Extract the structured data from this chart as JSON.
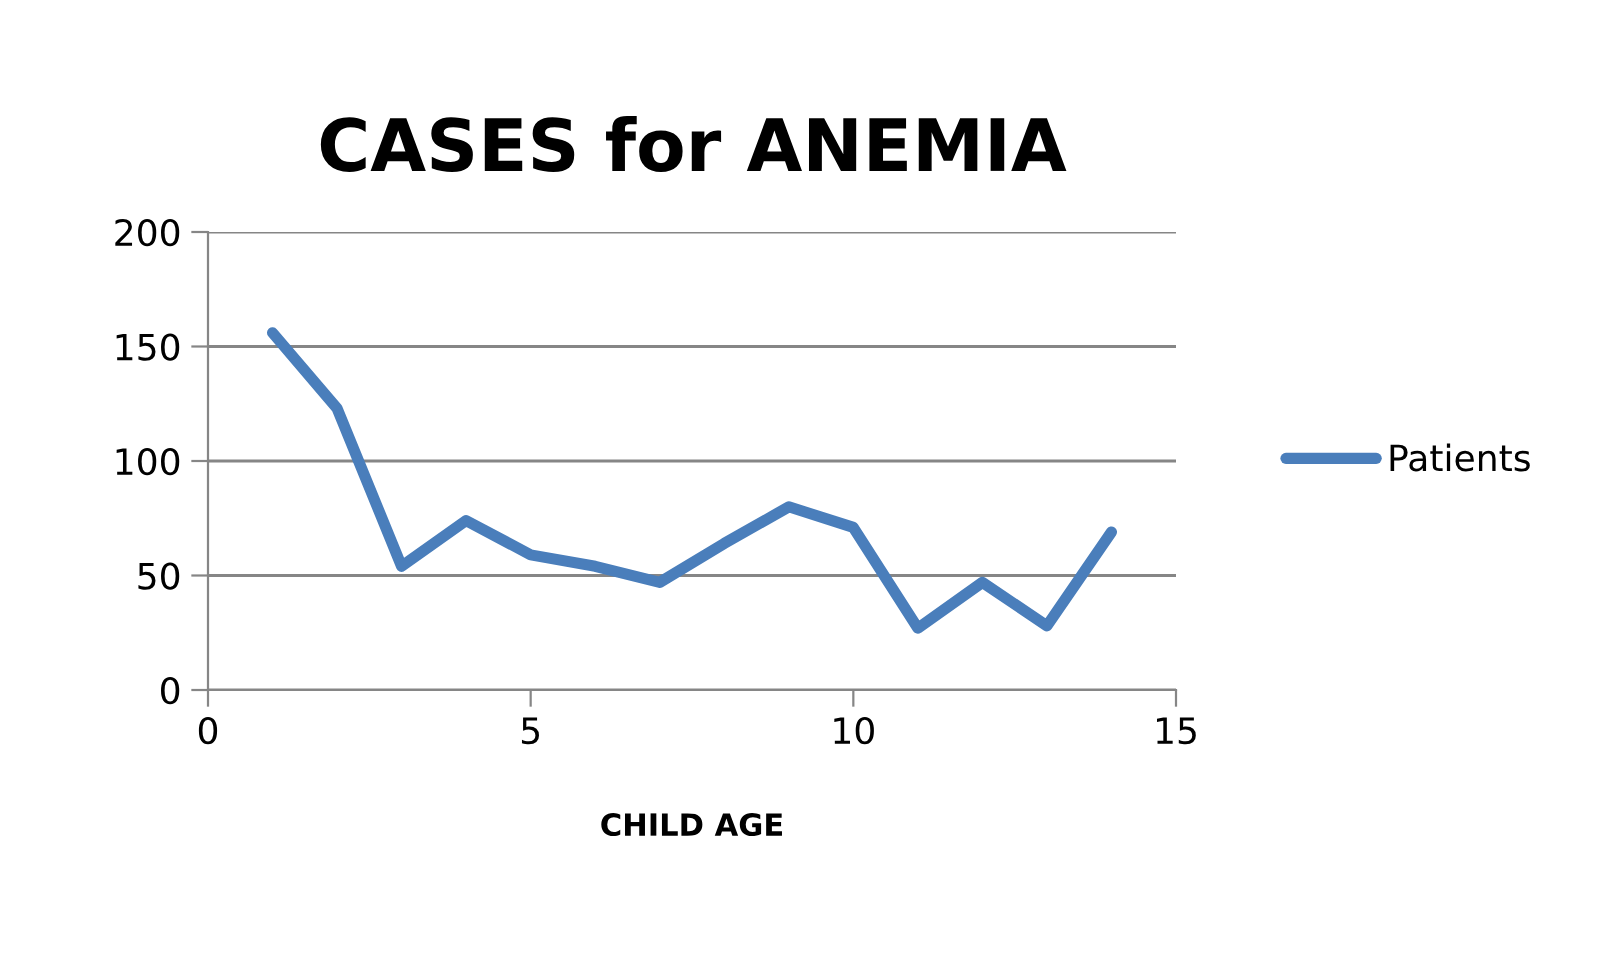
{
  "chart_data": {
    "type": "line",
    "title": "CASES for ANEMIA",
    "xlabel": "CHILD AGE",
    "x": [
      1,
      2,
      3,
      4,
      5,
      6,
      7,
      8,
      9,
      10,
      11,
      12,
      13,
      14
    ],
    "series": [
      {
        "name": "Patients",
        "color": "#4a7ebb",
        "values": [
          156,
          123,
          54,
          74,
          59,
          54,
          47,
          64,
          80,
          71,
          27,
          47,
          28,
          69
        ]
      }
    ],
    "xlim": [
      0,
      15
    ],
    "xticks": [
      0,
      5,
      10,
      15
    ],
    "ylim": [
      0,
      200
    ],
    "yticks": [
      0,
      50,
      100,
      150,
      200
    ],
    "grid": "y",
    "legend": "right",
    "marker": "none",
    "line_style": "solid"
  }
}
